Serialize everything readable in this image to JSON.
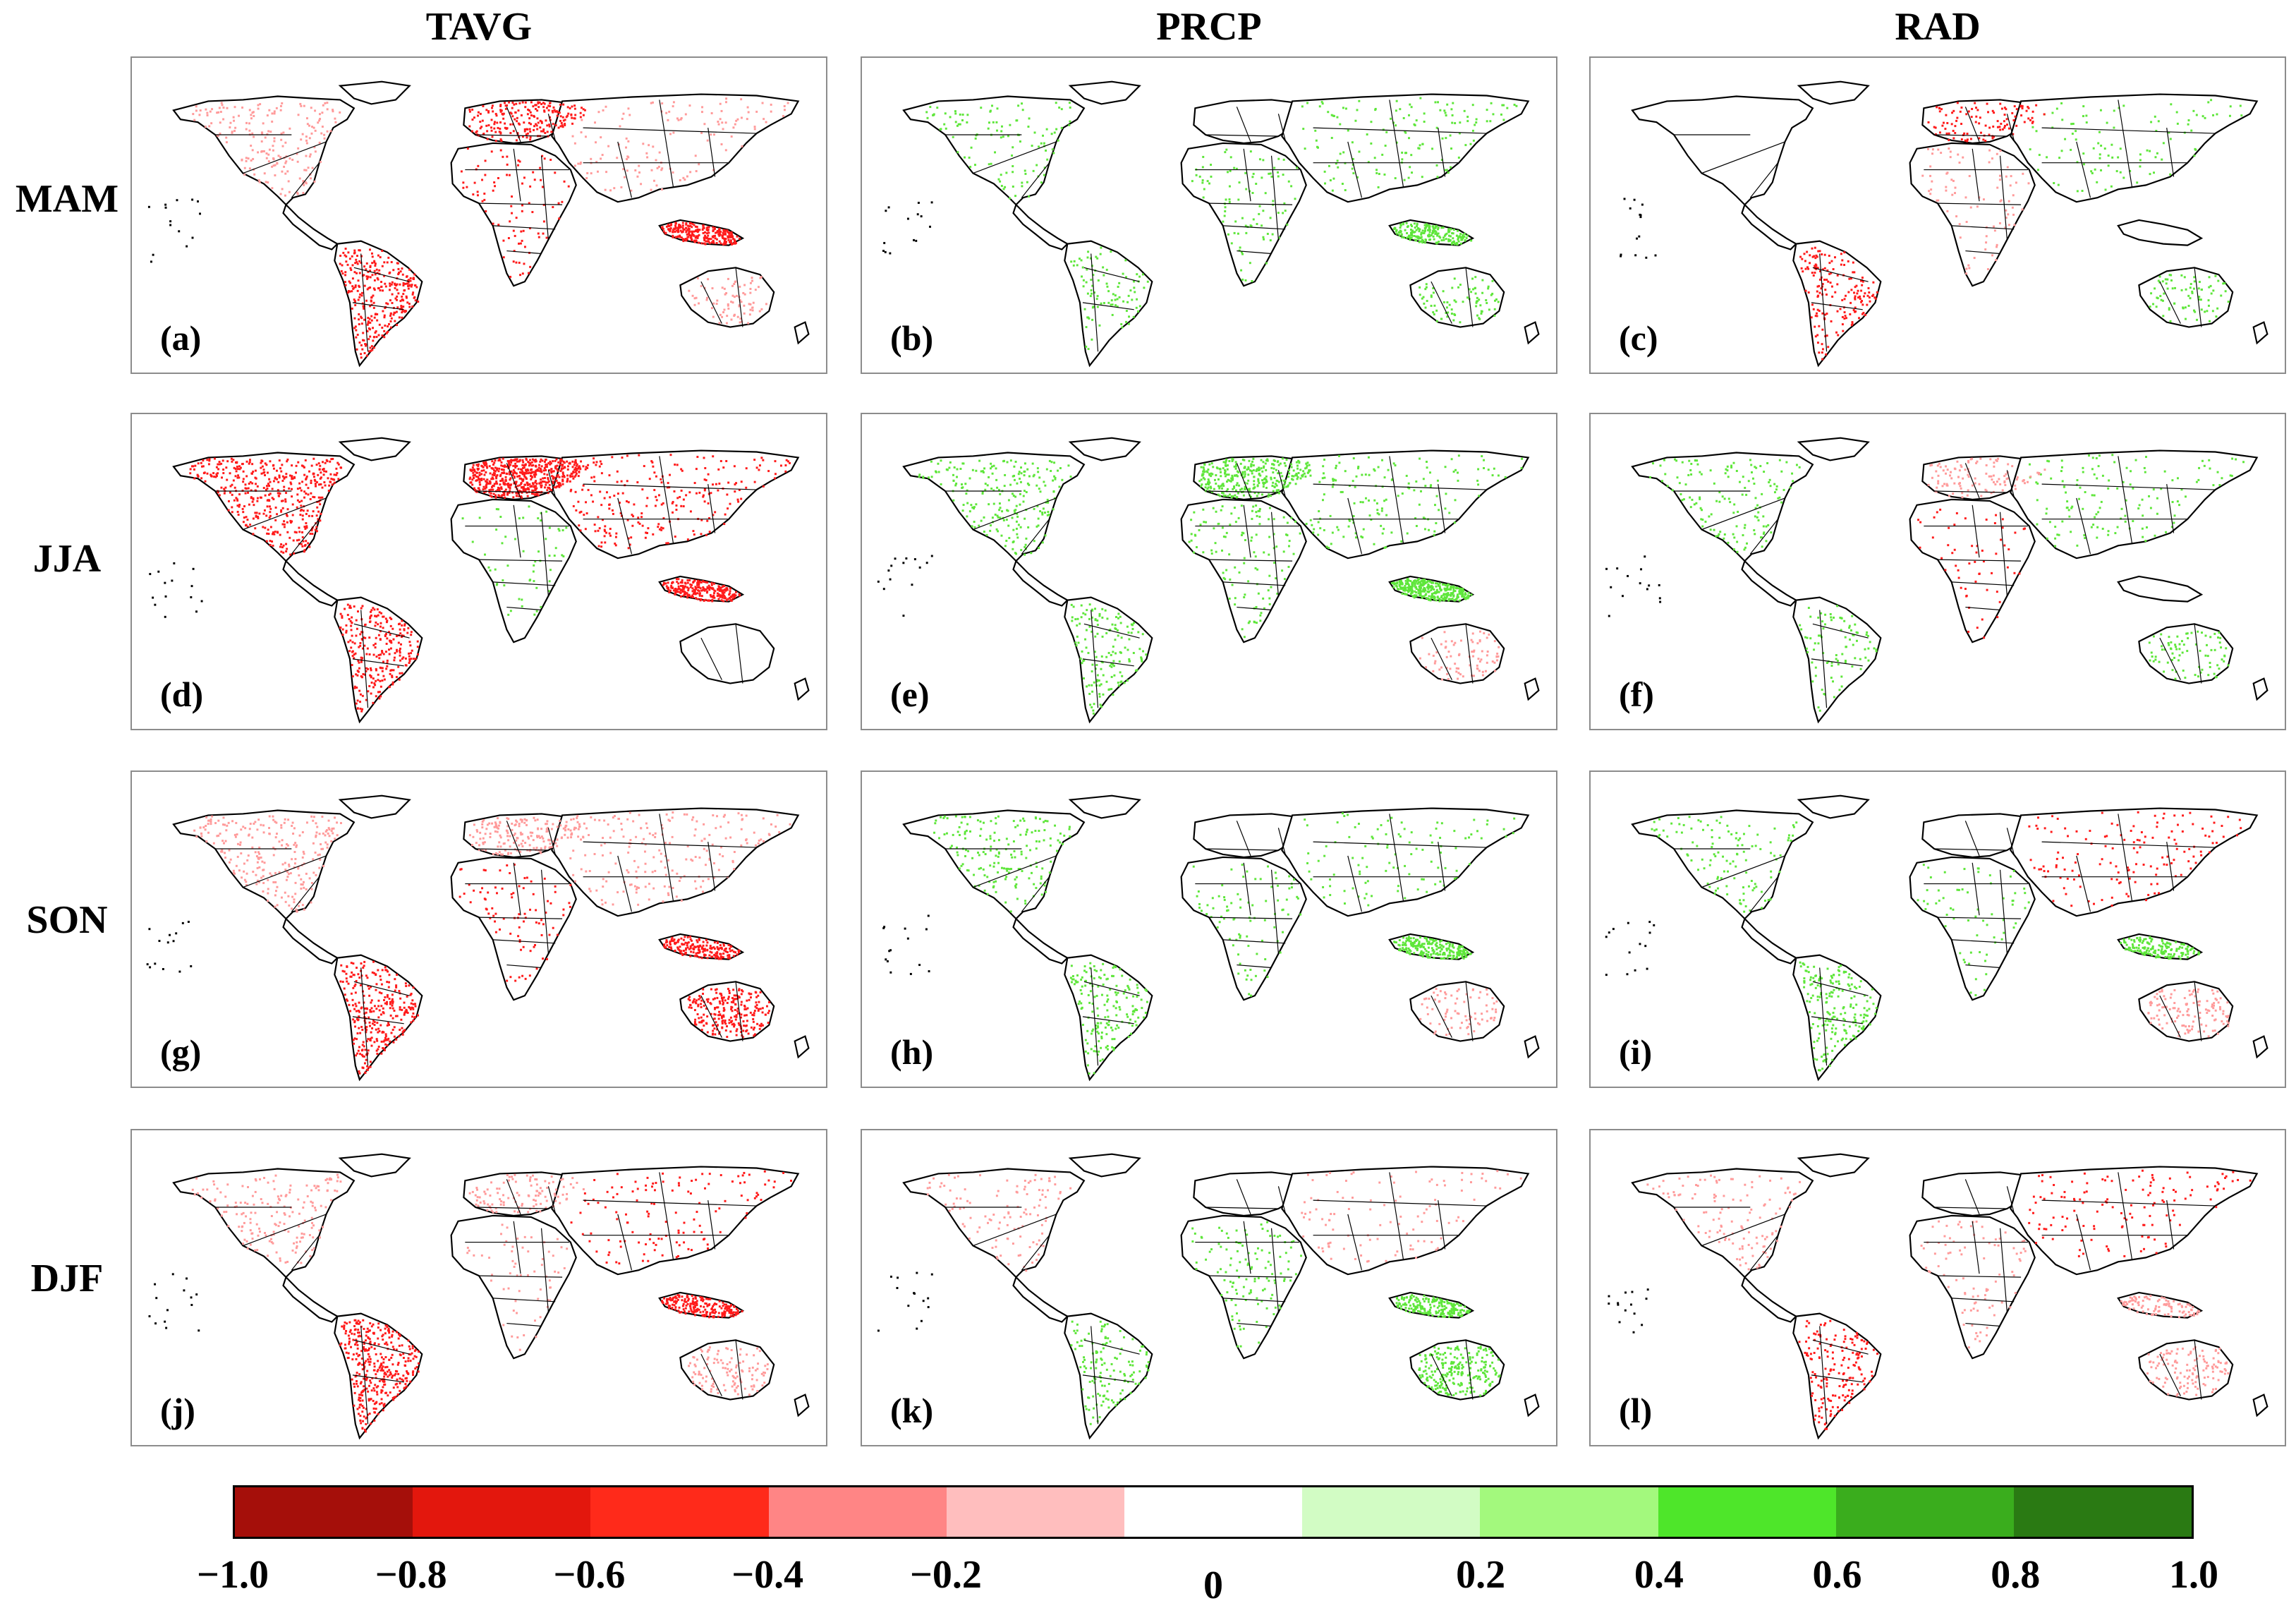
{
  "columns": [
    "TAVG",
    "PRCP",
    "RAD"
  ],
  "rows": [
    "MAM",
    "JJA",
    "SON",
    "DJF"
  ],
  "panel_labels": [
    "(a)",
    "(b)",
    "(c)",
    "(d)",
    "(e)",
    "(f)",
    "(g)",
    "(h)",
    "(i)",
    "(j)",
    "(k)",
    "(l)"
  ],
  "colorbar": {
    "colors": [
      "#a50f0a",
      "#e3170d",
      "#ff2a1a",
      "#ff8585",
      "#ffbebe",
      "#ffffff",
      "#d2fcc4",
      "#a3f97d",
      "#4ee62a",
      "#3aad1d",
      "#2a7a13"
    ],
    "tick_labels": [
      "−1.0",
      "−0.8",
      "−0.6",
      "−0.4",
      "−0.2",
      "0",
      "0.2",
      "0.4",
      "0.6",
      "0.8",
      "1.0"
    ]
  },
  "map_colors": {
    "red": "#ff1a1a",
    "pink": "#ff9a9a",
    "green": "#5ee63a",
    "darkred": "#c80f0a"
  },
  "panels": [
    {
      "label_index": 0,
      "regions": [
        [
          "na",
          "pink",
          0.35
        ],
        [
          "sa",
          "red",
          0.55
        ],
        [
          "eu",
          "red",
          0.3
        ],
        [
          "asia",
          "pink",
          0.2
        ],
        [
          "sea",
          "red",
          0.4
        ],
        [
          "africa",
          "red",
          0.15
        ],
        [
          "aus",
          "pink",
          0.1
        ]
      ]
    },
    {
      "label_index": 1,
      "regions": [
        [
          "na",
          "green",
          0.2
        ],
        [
          "sea",
          "green",
          0.35
        ],
        [
          "asia",
          "green",
          0.2
        ],
        [
          "africa",
          "green",
          0.15
        ],
        [
          "sa",
          "green",
          0.15
        ],
        [
          "aus",
          "green",
          0.1
        ]
      ]
    },
    {
      "label_index": 2,
      "regions": [
        [
          "sa",
          "red",
          0.3
        ],
        [
          "asia",
          "green",
          0.15
        ],
        [
          "africa",
          "pink",
          0.15
        ],
        [
          "eu",
          "red",
          0.15
        ],
        [
          "aus",
          "green",
          0.1
        ]
      ]
    },
    {
      "label_index": 3,
      "regions": [
        [
          "na",
          "red",
          0.8
        ],
        [
          "eu",
          "red",
          0.8
        ],
        [
          "asia",
          "red",
          0.35
        ],
        [
          "sa",
          "red",
          0.45
        ],
        [
          "sea",
          "red",
          0.4
        ],
        [
          "africa",
          "green",
          0.1
        ]
      ]
    },
    {
      "label_index": 4,
      "regions": [
        [
          "na",
          "green",
          0.4
        ],
        [
          "eu",
          "green",
          0.45
        ],
        [
          "asia",
          "green",
          0.25
        ],
        [
          "sea",
          "green",
          0.55
        ],
        [
          "sa",
          "green",
          0.25
        ],
        [
          "africa",
          "green",
          0.2
        ],
        [
          "aus",
          "pink",
          0.1
        ]
      ]
    },
    {
      "label_index": 5,
      "regions": [
        [
          "na",
          "green",
          0.25
        ],
        [
          "asia",
          "green",
          0.2
        ],
        [
          "africa",
          "red",
          0.1
        ],
        [
          "sa",
          "green",
          0.15
        ],
        [
          "aus",
          "green",
          0.1
        ],
        [
          "eu",
          "pink",
          0.15
        ]
      ]
    },
    {
      "label_index": 6,
      "regions": [
        [
          "na",
          "pink",
          0.45
        ],
        [
          "sa",
          "red",
          0.5
        ],
        [
          "eu",
          "pink",
          0.25
        ],
        [
          "asia",
          "pink",
          0.3
        ],
        [
          "sea",
          "red",
          0.3
        ],
        [
          "africa",
          "red",
          0.15
        ],
        [
          "aus",
          "red",
          0.3
        ]
      ]
    },
    {
      "label_index": 7,
      "regions": [
        [
          "na",
          "green",
          0.3
        ],
        [
          "sa",
          "green",
          0.3
        ],
        [
          "sea",
          "green",
          0.35
        ],
        [
          "africa",
          "green",
          0.15
        ],
        [
          "asia",
          "green",
          0.15
        ],
        [
          "aus",
          "pink",
          0.1
        ]
      ]
    },
    {
      "label_index": 8,
      "regions": [
        [
          "na",
          "green",
          0.2
        ],
        [
          "sa",
          "green",
          0.35
        ],
        [
          "asia",
          "red",
          0.2
        ],
        [
          "sea",
          "green",
          0.25
        ],
        [
          "africa",
          "green",
          0.1
        ],
        [
          "aus",
          "pink",
          0.15
        ]
      ]
    },
    {
      "label_index": 9,
      "regions": [
        [
          "na",
          "pink",
          0.3
        ],
        [
          "sa",
          "red",
          0.6
        ],
        [
          "eu",
          "pink",
          0.15
        ],
        [
          "asia",
          "red",
          0.2
        ],
        [
          "sea",
          "red",
          0.35
        ],
        [
          "aus",
          "pink",
          0.15
        ],
        [
          "africa",
          "pink",
          0.1
        ]
      ]
    },
    {
      "label_index": 10,
      "regions": [
        [
          "na",
          "pink",
          0.2
        ],
        [
          "sa",
          "green",
          0.25
        ],
        [
          "sea",
          "green",
          0.3
        ],
        [
          "africa",
          "green",
          0.2
        ],
        [
          "aus",
          "green",
          0.3
        ],
        [
          "asia",
          "pink",
          0.15
        ]
      ]
    },
    {
      "label_index": 11,
      "regions": [
        [
          "na",
          "pink",
          0.2
        ],
        [
          "sa",
          "red",
          0.3
        ],
        [
          "asia",
          "red",
          0.2
        ],
        [
          "africa",
          "pink",
          0.15
        ],
        [
          "aus",
          "pink",
          0.15
        ],
        [
          "sea",
          "pink",
          0.15
        ]
      ]
    }
  ]
}
